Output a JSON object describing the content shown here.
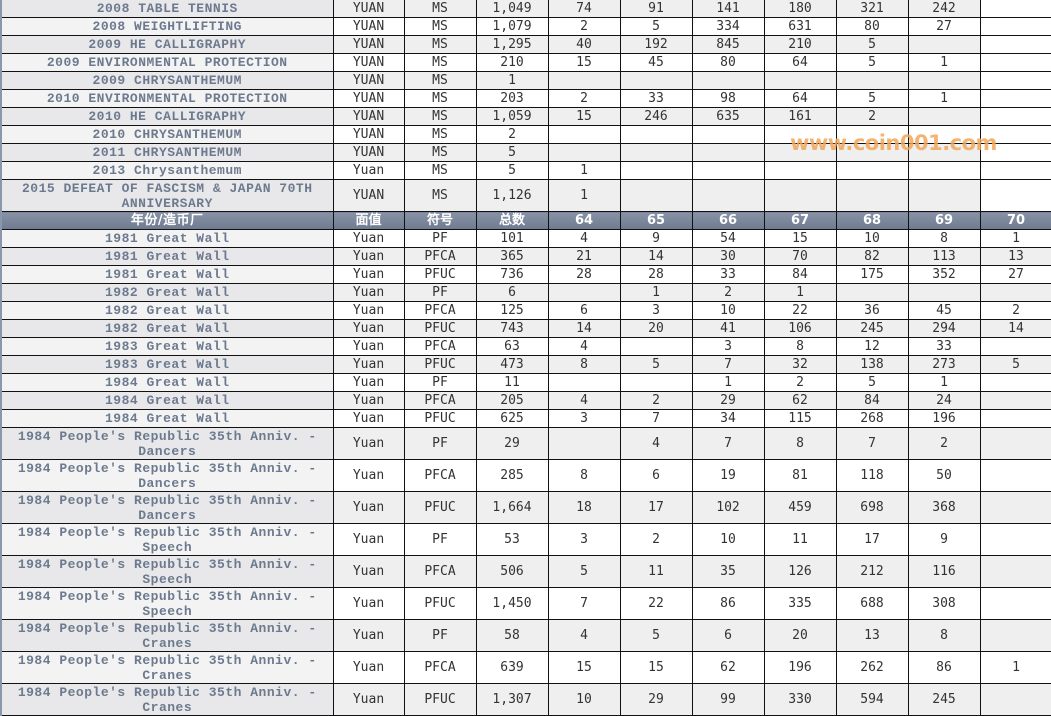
{
  "header": [
    "年份/造币厂",
    "面值",
    "符号",
    "总数",
    "64",
    "65",
    "66",
    "67",
    "68",
    "69",
    "70"
  ],
  "top_rows": [
    [
      "2008 TABLE TENNIS",
      "YUAN",
      "MS",
      "1,049",
      "74",
      "91",
      "141",
      "180",
      "321",
      "242",
      ""
    ],
    [
      "2008 WEIGHTLIFTING",
      "YUAN",
      "MS",
      "1,079",
      "2",
      "5",
      "334",
      "631",
      "80",
      "27",
      ""
    ],
    [
      "2009 HE CALLIGRAPHY",
      "YUAN",
      "MS",
      "1,295",
      "40",
      "192",
      "845",
      "210",
      "5",
      "",
      ""
    ],
    [
      "2009 ENVIRONMENTAL PROTECTION",
      "YUAN",
      "MS",
      "210",
      "15",
      "45",
      "80",
      "64",
      "5",
      "1",
      ""
    ],
    [
      "2009 CHRYSANTHEMUM",
      "YUAN",
      "MS",
      "1",
      "",
      "",
      "",
      "",
      "",
      "",
      ""
    ],
    [
      "2010 ENVIRONMENTAL PROTECTION",
      "YUAN",
      "MS",
      "203",
      "2",
      "33",
      "98",
      "64",
      "5",
      "1",
      ""
    ],
    [
      "2010 HE CALLIGRAPHY",
      "YUAN",
      "MS",
      "1,059",
      "15",
      "246",
      "635",
      "161",
      "2",
      "",
      ""
    ],
    [
      "2010 CHRYSANTHEMUM",
      "YUAN",
      "MS",
      "2",
      "",
      "",
      "",
      "",
      "",
      "",
      ""
    ],
    [
      "2011 CHRYSANTHEMUM",
      "YUAN",
      "MS",
      "5",
      "",
      "",
      "",
      "",
      "",
      "",
      ""
    ],
    [
      "2013 Chrysanthemum",
      "Yuan",
      "MS",
      "5",
      "1",
      "",
      "",
      "",
      "",
      "",
      ""
    ],
    [
      "2015 DEFEAT OF FASCISM & JAPAN 70TH ANNIVERSARY",
      "YUAN",
      "MS",
      "1,126",
      "1",
      "",
      "",
      "",
      "",
      "",
      ""
    ]
  ],
  "bottom_rows": [
    [
      "1981 Great Wall",
      "Yuan",
      "PF",
      "101",
      "4",
      "9",
      "54",
      "15",
      "10",
      "8",
      "1"
    ],
    [
      "1981 Great Wall",
      "Yuan",
      "PFCA",
      "365",
      "21",
      "14",
      "30",
      "70",
      "82",
      "113",
      "13"
    ],
    [
      "1981 Great Wall",
      "Yuan",
      "PFUC",
      "736",
      "28",
      "28",
      "33",
      "84",
      "175",
      "352",
      "27"
    ],
    [
      "1982 Great Wall",
      "Yuan",
      "PF",
      "6",
      "",
      "1",
      "2",
      "1",
      "",
      "",
      ""
    ],
    [
      "1982 Great Wall",
      "Yuan",
      "PFCA",
      "125",
      "6",
      "3",
      "10",
      "22",
      "36",
      "45",
      "2"
    ],
    [
      "1982 Great Wall",
      "Yuan",
      "PFUC",
      "743",
      "14",
      "20",
      "41",
      "106",
      "245",
      "294",
      "14"
    ],
    [
      "1983 Great Wall",
      "Yuan",
      "PFCA",
      "63",
      "4",
      "",
      "3",
      "8",
      "12",
      "33",
      ""
    ],
    [
      "1983 Great Wall",
      "Yuan",
      "PFUC",
      "473",
      "8",
      "5",
      "7",
      "32",
      "138",
      "273",
      "5"
    ],
    [
      "1984 Great Wall",
      "Yuan",
      "PF",
      "11",
      "",
      "",
      "1",
      "2",
      "5",
      "1",
      ""
    ],
    [
      "1984 Great Wall",
      "Yuan",
      "PFCA",
      "205",
      "4",
      "2",
      "29",
      "62",
      "84",
      "24",
      ""
    ],
    [
      "1984 Great Wall",
      "Yuan",
      "PFUC",
      "625",
      "3",
      "7",
      "34",
      "115",
      "268",
      "196",
      ""
    ],
    [
      "1984 People's Republic 35th Anniv. - Dancers",
      "Yuan",
      "PF",
      "29",
      "",
      "4",
      "7",
      "8",
      "7",
      "2",
      ""
    ],
    [
      "1984 People's Republic 35th Anniv. - Dancers",
      "Yuan",
      "PFCA",
      "285",
      "8",
      "6",
      "19",
      "81",
      "118",
      "50",
      ""
    ],
    [
      "1984 People's Republic 35th Anniv. - Dancers",
      "Yuan",
      "PFUC",
      "1,664",
      "18",
      "17",
      "102",
      "459",
      "698",
      "368",
      ""
    ],
    [
      "1984 People's Republic 35th Anniv. - Speech",
      "Yuan",
      "PF",
      "53",
      "3",
      "2",
      "10",
      "11",
      "17",
      "9",
      ""
    ],
    [
      "1984 People's Republic 35th Anniv. - Speech",
      "Yuan",
      "PFCA",
      "506",
      "5",
      "11",
      "35",
      "126",
      "212",
      "116",
      ""
    ],
    [
      "1984 People's Republic 35th Anniv. - Speech",
      "Yuan",
      "PFUC",
      "1,450",
      "7",
      "22",
      "86",
      "335",
      "688",
      "308",
      ""
    ],
    [
      "1984 People's Republic 35th Anniv. - Cranes",
      "Yuan",
      "PF",
      "58",
      "4",
      "5",
      "6",
      "20",
      "13",
      "8",
      ""
    ],
    [
      "1984 People's Republic 35th Anniv. - Cranes",
      "Yuan",
      "PFCA",
      "639",
      "15",
      "15",
      "62",
      "196",
      "262",
      "86",
      "1"
    ],
    [
      "1984 People's Republic 35th Anniv. - Cranes",
      "Yuan",
      "PFUC",
      "1,307",
      "10",
      "29",
      "99",
      "330",
      "594",
      "245",
      ""
    ]
  ],
  "watermark": "www.coin001.com",
  "colors": {
    "header_bg": "#7a8599",
    "name_text": "#6d7a8e",
    "stripe": "#efefef",
    "watermark": "#f2a85a"
  }
}
